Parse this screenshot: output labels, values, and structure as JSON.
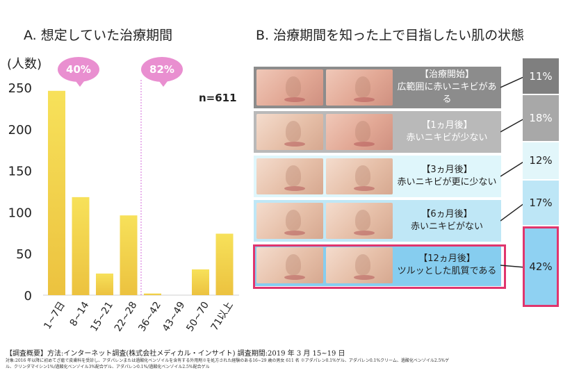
{
  "panel_a": {
    "title": "A. 想定していた治療期間",
    "callouts": [
      "40%",
      "82%"
    ],
    "n_label": "n=611"
  },
  "panel_b": {
    "title": "B. 治療期間を知った上で目指したい肌の状態",
    "stages": [
      {
        "label": "【治療開始】",
        "desc": "広範囲に赤いニキビがある",
        "percent": "11%",
        "bg": "#8c8c8c",
        "text_color": "#ffffff",
        "pct_bg": "#7f7f7f",
        "pct_text": "#ffffff"
      },
      {
        "label": "【1ヵ月後】",
        "desc": "赤いニキビが少ない",
        "percent": "18%",
        "bg": "#b9b9b9",
        "text_color": "#ffffff",
        "pct_bg": "#a8a8a8",
        "pct_text": "#ffffff"
      },
      {
        "label": "【3ヵ月後】",
        "desc": "赤いニキビが更に少ない",
        "percent": "12%",
        "bg": "#dff6fb",
        "text_color": "#222222",
        "pct_bg": "#e2f6fa",
        "pct_text": "#222222"
      },
      {
        "label": "【6ヵ月後】",
        "desc": "赤いニキビがない",
        "percent": "17%",
        "bg": "#bfe7f6",
        "text_color": "#222222",
        "pct_bg": "#bde6f6",
        "pct_text": "#222222"
      },
      {
        "label": "【12ヵ月後】",
        "desc": "ツルッとした肌質である",
        "percent": "42%",
        "bg": "#86cdef",
        "text_color": "#222222",
        "pct_bg": "#8fd1f2",
        "pct_text": "#222222"
      }
    ]
  },
  "footer": {
    "main": "【調査概要】方法:インターネット調査(株式会社メディカル・インサイト) 調査期間:2019 年 3 月 15~19 日",
    "note1": "対象:2016 年以降に初めてざ瘡で皮膚科を受診し、アダパレンまたは過酸化ベンゾイルを含有する外用剤※を処方された経験のある16~29 歳の男女 611 名 ※アダパレン0.1%ゲル、アダパレン0.1%クリーム、過酸化ベンゾイル2.5%ゲ",
    "note2": "ル、クリンダマイシン1%/過酸化ベンゾイル3%配合ゲル、アダパレン0.1%/過酸化ベンゾイル2.5%配合ゲル"
  },
  "colors": {
    "bar_top": "#f7e15a",
    "bar_bottom": "#ecc23f",
    "callout": "#e98fd0",
    "highlight": "#e0356d"
  },
  "chart_data": [
    {
      "type": "bar",
      "title": "A. 想定していた治療期間",
      "ylabel": "(人数)",
      "xlabel": "",
      "categories": [
        "1~7日",
        "8~14",
        "15~21",
        "22~28",
        "36~42",
        "43~49",
        "50~70",
        "71以上"
      ],
      "values": [
        246,
        118,
        26,
        96,
        2,
        0,
        31,
        74
      ],
      "ylim": [
        0,
        250
      ],
      "yticks": [
        0,
        50,
        100,
        150,
        200,
        250
      ],
      "grid": false,
      "annotations": [
        "40%",
        "82%",
        "n=611"
      ]
    },
    {
      "type": "table",
      "title": "B. 治療期間を知った上で目指したい肌の状態",
      "categories": [
        "【治療開始】広範囲に赤いニキビがある",
        "【1ヵ月後】赤いニキビが少ない",
        "【3ヵ月後】赤いニキビが更に少ない",
        "【6ヵ月後】赤いニキビがない",
        "【12ヵ月後】ツルッとした肌質である"
      ],
      "values": [
        11,
        18,
        12,
        17,
        42
      ]
    }
  ]
}
